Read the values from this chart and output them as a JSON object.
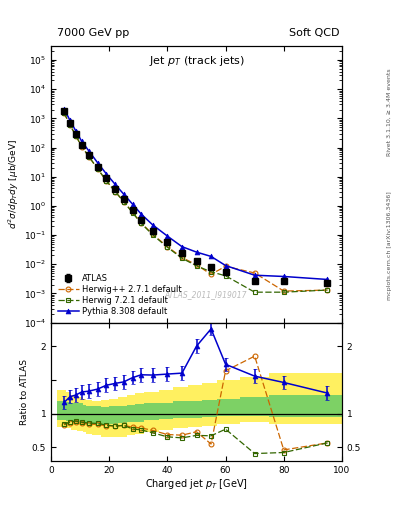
{
  "title_left": "7000 GeV pp",
  "title_right": "Soft QCD",
  "panel_title": "Jet $p_T$ (track jets)",
  "ylabel_main": "$d^{2}\\sigma/dp_{T}dy$ [$\\mu$b/GeV]",
  "ylabel_ratio": "Ratio to ATLAS",
  "xlabel": "Charged jet $p_T$ [GeV]",
  "watermark": "ATLAS_2011_I919017",
  "right_label1": "Rivet 3.1.10, ≥ 3.4M events",
  "right_label2": "mcplots.cern.ch [arXiv:1306.3436]",
  "xlim": [
    0,
    100
  ],
  "ylim_main": [
    0.0001,
    300000.0
  ],
  "ylim_ratio": [
    0.3,
    2.35
  ],
  "atlas_x": [
    4.5,
    6.5,
    8.5,
    10.5,
    13.0,
    16.0,
    19.0,
    22.0,
    25.0,
    28.0,
    31.0,
    35.0,
    40.0,
    45.0,
    50.0,
    55.0,
    60.0,
    70.0,
    80.0,
    95.0
  ],
  "atlas_y": [
    1800,
    680,
    290,
    125,
    57,
    22,
    8.8,
    3.8,
    1.7,
    0.75,
    0.33,
    0.14,
    0.058,
    0.025,
    0.013,
    0.0082,
    0.0052,
    0.0027,
    0.0026,
    0.0023
  ],
  "atlas_yerr": [
    180,
    68,
    29,
    12.5,
    5.7,
    2.2,
    0.88,
    0.38,
    0.17,
    0.075,
    0.033,
    0.014,
    0.006,
    0.0025,
    0.0013,
    0.0008,
    0.0005,
    0.00027,
    0.00026,
    0.00023
  ],
  "herwig_x": [
    4.5,
    6.5,
    8.5,
    10.5,
    13.0,
    16.0,
    19.0,
    22.0,
    25.0,
    28.0,
    31.0,
    35.0,
    40.0,
    45.0,
    50.0,
    55.0,
    60.0,
    70.0,
    80.0,
    95.0
  ],
  "herwig_y": [
    1500,
    590,
    255,
    108,
    48,
    18.5,
    7.2,
    3.1,
    1.4,
    0.6,
    0.26,
    0.105,
    0.04,
    0.017,
    0.0095,
    0.0045,
    0.0085,
    0.005,
    0.0012,
    0.0013
  ],
  "herwig72_x": [
    4.5,
    6.5,
    8.5,
    10.5,
    13.0,
    16.0,
    19.0,
    22.0,
    25.0,
    28.0,
    31.0,
    35.0,
    40.0,
    45.0,
    50.0,
    55.0,
    60.0,
    70.0,
    80.0,
    95.0
  ],
  "herwig72_y": [
    1520,
    595,
    258,
    109,
    49,
    18.8,
    7.3,
    3.1,
    1.4,
    0.58,
    0.25,
    0.1,
    0.038,
    0.016,
    0.0088,
    0.0055,
    0.004,
    0.0011,
    0.0011,
    0.0013
  ],
  "pythia_x": [
    4.5,
    6.5,
    8.5,
    10.5,
    13.0,
    16.0,
    19.0,
    22.0,
    25.0,
    28.0,
    31.0,
    35.0,
    40.0,
    45.0,
    50.0,
    55.0,
    60.0,
    70.0,
    80.0,
    95.0
  ],
  "pythia_y": [
    2100,
    850,
    370,
    165,
    76,
    30,
    12.5,
    5.5,
    2.5,
    1.15,
    0.52,
    0.22,
    0.092,
    0.04,
    0.026,
    0.0185,
    0.009,
    0.0042,
    0.0038,
    0.003
  ],
  "herwig_color": "#cc6600",
  "herwig72_color": "#336600",
  "pythia_color": "#0000cc",
  "atlas_color": "#000000",
  "band_x_edges": [
    2,
    5,
    7,
    9,
    11,
    12,
    14,
    17,
    20,
    23,
    26,
    29,
    32,
    37,
    42,
    47,
    52,
    57,
    65,
    75,
    100
  ],
  "band_yellow_lo": [
    0.8,
    0.78,
    0.76,
    0.74,
    0.72,
    0.7,
    0.68,
    0.66,
    0.65,
    0.66,
    0.68,
    0.7,
    0.72,
    0.75,
    0.78,
    0.8,
    0.82,
    0.85,
    0.88,
    0.85
  ],
  "band_yellow_hi": [
    1.35,
    1.32,
    1.28,
    1.25,
    1.22,
    1.2,
    1.18,
    1.2,
    1.22,
    1.25,
    1.28,
    1.3,
    1.32,
    1.35,
    1.4,
    1.42,
    1.45,
    1.5,
    1.55,
    1.6
  ],
  "band_green_lo": [
    0.9,
    0.89,
    0.88,
    0.87,
    0.86,
    0.85,
    0.84,
    0.84,
    0.85,
    0.86,
    0.87,
    0.88,
    0.9,
    0.92,
    0.93,
    0.94,
    0.95,
    0.96,
    0.97,
    0.95
  ],
  "band_green_hi": [
    1.18,
    1.17,
    1.16,
    1.15,
    1.13,
    1.12,
    1.11,
    1.1,
    1.11,
    1.12,
    1.13,
    1.14,
    1.15,
    1.16,
    1.18,
    1.19,
    1.2,
    1.22,
    1.25,
    1.28
  ]
}
